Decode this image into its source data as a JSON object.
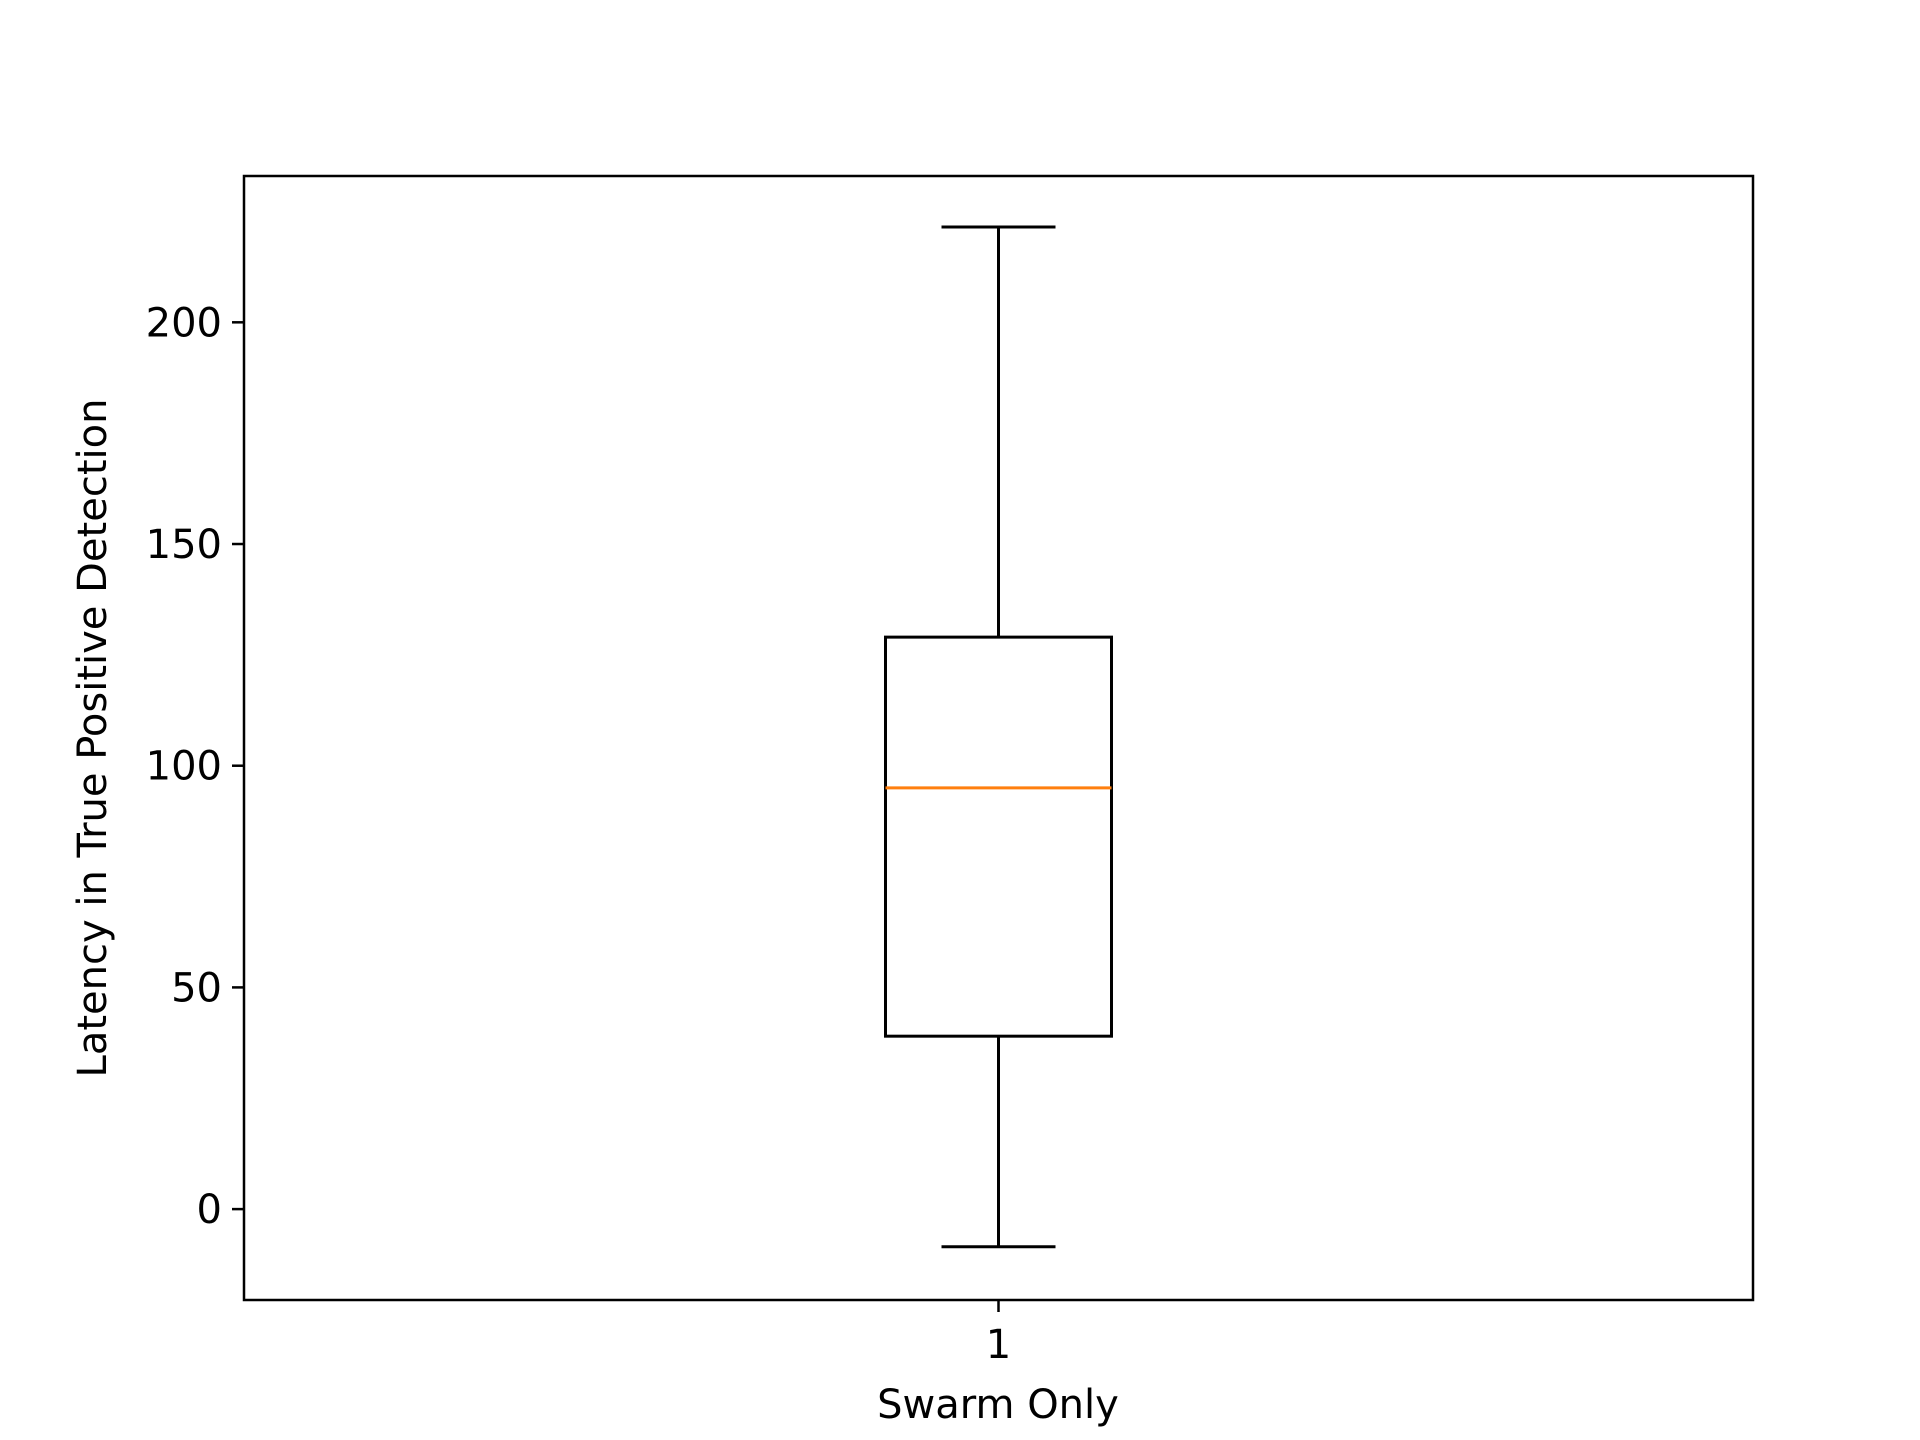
{
  "chart_data": {
    "type": "box",
    "xlabel": "Swarm Only",
    "ylabel": "Latency in True Positive Detection",
    "ylim": [
      -20.5,
      233
    ],
    "yticks": [
      0,
      50,
      100,
      150,
      200
    ],
    "xticks": [
      "1"
    ],
    "grid": false,
    "boxes": [
      {
        "label": "1",
        "whisker_low": -8.5,
        "q1": 39,
        "median": 95,
        "q3": 129,
        "whisker_high": 221.5
      }
    ],
    "colors": {
      "median": "#ff7f0e",
      "box": "#000000",
      "axes": "#000000"
    }
  }
}
